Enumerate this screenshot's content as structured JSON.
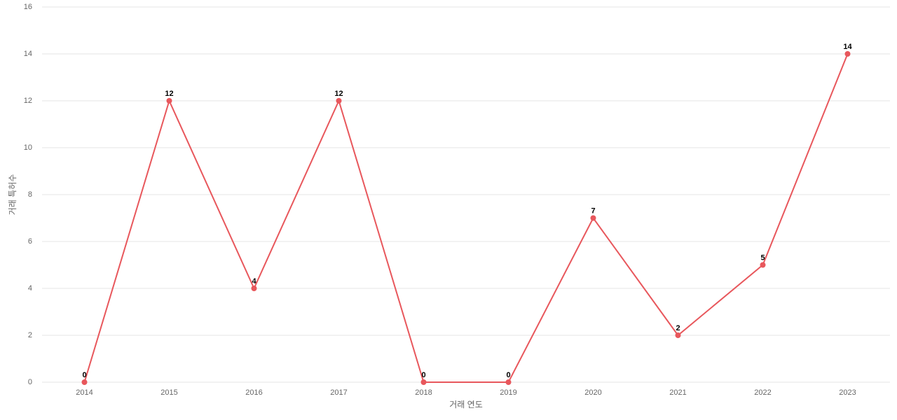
{
  "chart_data": {
    "type": "line",
    "x_label": "거래 연도",
    "y_label": "거래 특허수",
    "categories": [
      "2014",
      "2015",
      "2016",
      "2017",
      "2018",
      "2019",
      "2020",
      "2021",
      "2022",
      "2023"
    ],
    "values": [
      0,
      12,
      4,
      12,
      0,
      0,
      7,
      2,
      5,
      14
    ],
    "color": "#e8575c",
    "ylim": [
      0,
      16
    ],
    "yticks": [
      0,
      2,
      4,
      6,
      8,
      10,
      12,
      14,
      16
    ],
    "grid": true
  }
}
